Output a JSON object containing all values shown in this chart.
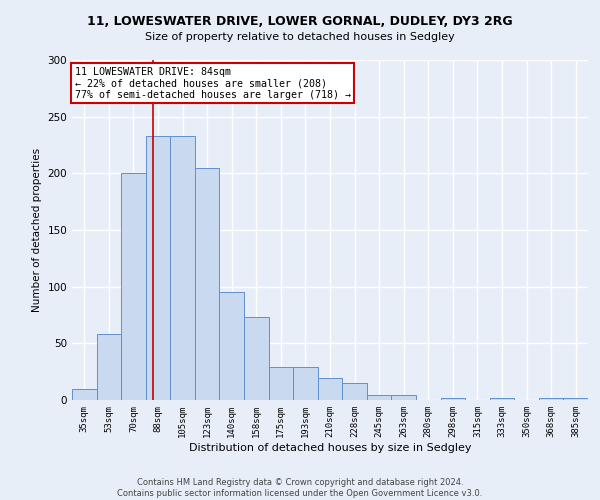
{
  "title1": "11, LOWESWATER DRIVE, LOWER GORNAL, DUDLEY, DY3 2RG",
  "title2": "Size of property relative to detached houses in Sedgley",
  "xlabel": "Distribution of detached houses by size in Sedgley",
  "ylabel": "Number of detached properties",
  "categories": [
    "35sqm",
    "53sqm",
    "70sqm",
    "88sqm",
    "105sqm",
    "123sqm",
    "140sqm",
    "158sqm",
    "175sqm",
    "193sqm",
    "210sqm",
    "228sqm",
    "245sqm",
    "263sqm",
    "280sqm",
    "298sqm",
    "315sqm",
    "333sqm",
    "350sqm",
    "368sqm",
    "385sqm"
  ],
  "values": [
    10,
    58,
    200,
    233,
    233,
    205,
    95,
    73,
    29,
    29,
    19,
    15,
    4,
    4,
    0,
    2,
    0,
    2,
    0,
    2,
    2
  ],
  "bar_color": "#c9d9f0",
  "bar_edge_color": "#6090cc",
  "background_color": "#e8eef8",
  "grid_color": "#ffffff",
  "red_line_x": 2.78,
  "annotation_text": "11 LOWESWATER DRIVE: 84sqm\n← 22% of detached houses are smaller (208)\n77% of semi-detached houses are larger (718) →",
  "annotation_box_color": "#ffffff",
  "annotation_box_edge": "#cc0000",
  "footnote": "Contains HM Land Registry data © Crown copyright and database right 2024.\nContains public sector information licensed under the Open Government Licence v3.0.",
  "ylim": [
    0,
    300
  ],
  "yticks": [
    0,
    50,
    100,
    150,
    200,
    250,
    300
  ]
}
